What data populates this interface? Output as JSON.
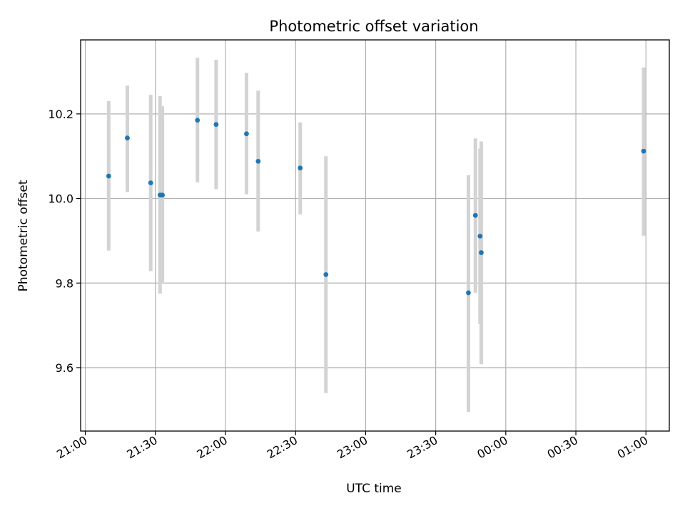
{
  "chart_data": {
    "type": "scatter",
    "title": "Photometric offset variation",
    "xlabel": "UTC time",
    "ylabel": "Photometric offset",
    "grid": true,
    "x_axis_type": "time",
    "xlim": [
      "20:58",
      "25:10"
    ],
    "ylim": [
      9.45,
      10.375
    ],
    "x_ticks": [
      {
        "time": "21:00",
        "label": "21:00"
      },
      {
        "time": "21:30",
        "label": "21:30"
      },
      {
        "time": "22:00",
        "label": "22:00"
      },
      {
        "time": "22:30",
        "label": "22:30"
      },
      {
        "time": "23:00",
        "label": "23:00"
      },
      {
        "time": "23:30",
        "label": "23:30"
      },
      {
        "time": "24:00",
        "label": "00:00"
      },
      {
        "time": "24:30",
        "label": "00:30"
      },
      {
        "time": "25:00",
        "label": "01:00"
      }
    ],
    "y_ticks": [
      {
        "value": 9.6,
        "label": "9.6"
      },
      {
        "value": 9.8,
        "label": "9.8"
      },
      {
        "value": 10.0,
        "label": "10.0"
      },
      {
        "value": 10.2,
        "label": "10.2"
      }
    ],
    "colors": {
      "point": "#1f77b4",
      "errorbar": "#d3d3d3"
    },
    "points": [
      {
        "time": "21:10",
        "y": 10.053,
        "lo": 9.877,
        "hi": 10.23
      },
      {
        "time": "21:18",
        "y": 10.143,
        "lo": 10.015,
        "hi": 10.267
      },
      {
        "time": "21:28",
        "y": 10.037,
        "lo": 9.828,
        "hi": 10.245
      },
      {
        "time": "21:32",
        "y": 10.008,
        "lo": 9.775,
        "hi": 10.242
      },
      {
        "time": "21:33",
        "y": 10.008,
        "lo": 9.8,
        "hi": 10.218
      },
      {
        "time": "21:48",
        "y": 10.185,
        "lo": 10.038,
        "hi": 10.333
      },
      {
        "time": "21:56",
        "y": 10.175,
        "lo": 10.022,
        "hi": 10.328
      },
      {
        "time": "22:09",
        "y": 10.153,
        "lo": 10.01,
        "hi": 10.297
      },
      {
        "time": "22:14",
        "y": 10.088,
        "lo": 9.922,
        "hi": 10.255
      },
      {
        "time": "22:32",
        "y": 10.072,
        "lo": 9.962,
        "hi": 10.18
      },
      {
        "time": "22:43",
        "y": 9.82,
        "lo": 9.54,
        "hi": 10.1
      },
      {
        "time": "23:44",
        "y": 9.777,
        "lo": 9.495,
        "hi": 10.055
      },
      {
        "time": "23:47",
        "y": 9.96,
        "lo": 9.777,
        "hi": 10.142
      },
      {
        "time": "23:49",
        "y": 9.911,
        "lo": 9.703,
        "hi": 10.118
      },
      {
        "time": "23:49.5",
        "y": 9.872,
        "lo": 9.608,
        "hi": 10.135
      },
      {
        "time": "24:59",
        "y": 10.112,
        "lo": 9.912,
        "hi": 10.31
      }
    ]
  }
}
